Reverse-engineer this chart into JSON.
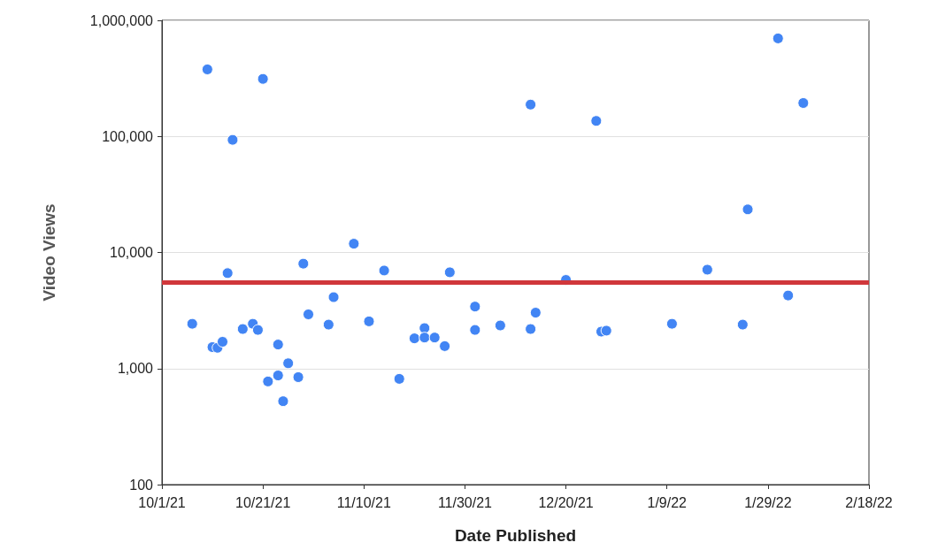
{
  "chart_data": {
    "type": "scatter",
    "xlabel": "Date Published",
    "ylabel": "Video Views",
    "x": [
      "2021-10-07",
      "2021-10-10",
      "2021-10-11",
      "2021-10-12",
      "2021-10-13",
      "2021-10-14",
      "2021-10-15",
      "2021-10-17",
      "2021-10-19",
      "2021-10-20",
      "2021-10-21",
      "2021-10-22",
      "2021-10-24",
      "2021-10-24",
      "2021-10-25",
      "2021-10-26",
      "2021-10-28",
      "2021-10-29",
      "2021-10-30",
      "2021-11-03",
      "2021-11-04",
      "2021-11-08",
      "2021-11-11",
      "2021-11-14",
      "2021-11-17",
      "2021-11-20",
      "2021-11-22",
      "2021-11-22",
      "2021-11-24",
      "2021-11-26",
      "2021-11-27",
      "2021-12-02",
      "2021-12-02",
      "2021-12-07",
      "2021-12-13",
      "2021-12-13",
      "2021-12-14",
      "2021-12-20",
      "2021-12-26",
      "2021-12-27",
      "2021-12-28",
      "2022-01-10",
      "2022-01-17",
      "2022-01-24",
      "2022-01-25",
      "2022-01-31",
      "2022-02-02",
      "2022-02-05"
    ],
    "values": [
      2430,
      378000,
      1530,
      1510,
      1700,
      6640,
      93400,
      2190,
      2430,
      2150,
      313000,
      774,
      1610,
      872,
      523,
      1110,
      843,
      8010,
      2930,
      2390,
      4120,
      11900,
      2550,
      6990,
      815,
      1820,
      2230,
      1850,
      1850,
      1560,
      6750,
      3420,
      2150,
      2350,
      188000,
      2190,
      3030,
      5800,
      136000,
      2080,
      2120,
      2430,
      7110,
      2390,
      23500,
      699000,
      4260,
      194000
    ],
    "color": "#4285f4",
    "marker": "circle",
    "log": "y",
    "grid": "y",
    "xlim": [
      "2021-10-01",
      "2022-02-18"
    ],
    "xticks": [
      {
        "value": "2021-10-01",
        "label": "10/1/21"
      },
      {
        "value": "2021-10-21",
        "label": "10/21/21"
      },
      {
        "value": "2021-11-10",
        "label": "11/10/21"
      },
      {
        "value": "2021-11-30",
        "label": "11/30/21"
      },
      {
        "value": "2021-12-20",
        "label": "12/20/21"
      },
      {
        "value": "2022-01-09",
        "label": "1/9/22"
      },
      {
        "value": "2022-01-29",
        "label": "1/29/22"
      },
      {
        "value": "2022-02-18",
        "label": "2/18/22"
      }
    ],
    "ylim": [
      100,
      1000000
    ],
    "yticks": [
      100,
      {
        "value": 1000,
        "label": "1,000"
      },
      {
        "value": 10000,
        "label": "10,000"
      },
      {
        "value": 100000,
        "label": "100,000"
      },
      {
        "value": 1000000,
        "label": "1,000,000"
      }
    ],
    "ref_lines": [
      {
        "axis": "y",
        "value": 5500,
        "color": "#d0373b"
      }
    ]
  }
}
